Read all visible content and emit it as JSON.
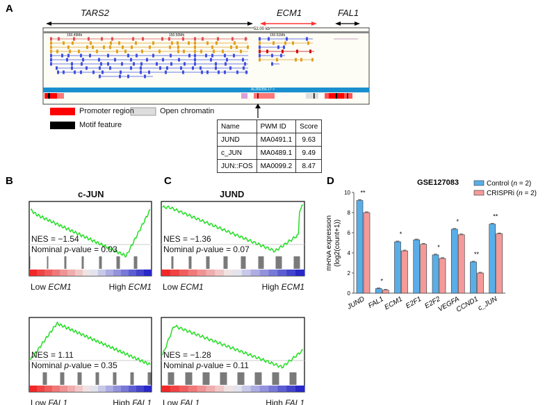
{
  "panels": {
    "A": "A",
    "B": "B",
    "C": "C",
    "D": "D"
  },
  "genes_top": {
    "tars2": "TARS2",
    "ecm1": "ECM1",
    "fal1": "FAL1"
  },
  "browser": {
    "scale": "52.00 kb",
    "coords": [
      "150.49Mb",
      "150.50Mb",
      "150.51Mb"
    ],
    "contig": "AL356356.17 >"
  },
  "legend": {
    "promoter": "Promoter region",
    "motif": "Motif feature",
    "open": "Open chromatin",
    "colors": {
      "promoter": "#ff0000",
      "motif": "#000000",
      "open": "#d9d9d9"
    }
  },
  "pwm_table": {
    "headers": [
      "Name",
      "PWM ID",
      "Score"
    ],
    "rows": [
      [
        "JUND",
        "MA0491.1",
        "9.63"
      ],
      [
        "c_JUN",
        "MA0489.1",
        "9.49"
      ],
      [
        "JUN::FOS",
        "MA0099.2",
        "8.47"
      ]
    ]
  },
  "gsea": [
    {
      "title": "c-JUN",
      "nes": "NES = −1.54",
      "pval_prefix": "Nominal ",
      "pval_italic": "p",
      "pval_suffix": "-value = 0.03",
      "low": "Low ",
      "high": "High ",
      "gene": "ECM1"
    },
    {
      "title": "",
      "nes": "NES = 1.11",
      "pval_prefix": "Nominal ",
      "pval_italic": "p",
      "pval_suffix": "-value = 0.35",
      "low": "Low ",
      "high": "High ",
      "gene": "FAL1"
    },
    {
      "title": "JUND",
      "nes": "NES = −1.36",
      "pval_prefix": "Nominal ",
      "pval_italic": "p",
      "pval_suffix": "-value = 0.07",
      "low": "Low ",
      "high": "High ",
      "gene": "ECM1"
    },
    {
      "title": "",
      "nes": "NES = −1.28",
      "pval_prefix": "Nominal ",
      "pval_italic": "p",
      "pval_suffix": "-value = 0.11",
      "low": "Low ",
      "high": "High ",
      "gene": "FAL1"
    }
  ],
  "chart_data": {
    "type": "bar",
    "title": "GSE127083",
    "ylabel": "mRNA expression (log2(count+1))",
    "ylim": [
      0,
      10
    ],
    "yticks": [
      "0",
      "2",
      "4",
      "6",
      "8",
      "10"
    ],
    "categories": [
      "JUND",
      "FAL1",
      "ECM1",
      "E2F1",
      "E2F2",
      "VEGFA",
      "CCND1",
      "c_JUN"
    ],
    "series": [
      {
        "name": "Control (n = 2)",
        "color": "#5aaee8",
        "values": [
          9.2,
          0.45,
          5.1,
          5.3,
          3.8,
          6.35,
          3.1,
          6.85
        ]
      },
      {
        "name": "CRISPRi (n = 2)",
        "color": "#f59a9a",
        "values": [
          8.0,
          0.3,
          4.2,
          4.85,
          3.45,
          5.8,
          2.0,
          5.9
        ]
      }
    ],
    "significance": [
      "**",
      "*",
      "*",
      "",
      "*",
      "*",
      "**",
      "**"
    ],
    "legend_position": "top-right"
  }
}
